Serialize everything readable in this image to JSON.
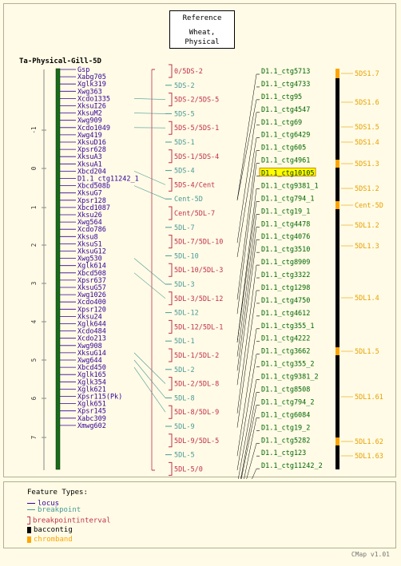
{
  "reference": {
    "line1": "Reference",
    "line2": "Wheat, Physical"
  },
  "map_title": "Ta-Physical-Gill-5D",
  "axis_ticks": [
    "-1",
    "0",
    "1",
    "2",
    "3",
    "4",
    "5",
    "6",
    "7"
  ],
  "loci": [
    "Gsp",
    "Xabg705",
    "Xglk319",
    "Xwg363",
    "Xcdo1335",
    "XksuI26",
    "XksuM2",
    "Xwg909",
    "Xcdo1049",
    "Xwg419",
    "XksuD16",
    "Xpsr628",
    "XksuA3",
    "XksuA1",
    "Xbcd204",
    "D1.1_ctg11242_1",
    "Xbcd508b",
    "XksuG7",
    "Xpsr128",
    "Xbcd1087",
    "Xksu26",
    "Xwg564",
    "Xcdo786",
    "Xksu8",
    "XksuS1",
    "XksuG12",
    "Xwg530",
    "Xglk614",
    "Xbcd508",
    "Xpsr637",
    "XksuG57",
    "Xwg1026",
    "Xcdo400",
    "Xpsr120",
    "Xksu24",
    "Xglk644",
    "Xcdo484",
    "Xcdo213",
    "Xwg908",
    "XksuG14",
    "Xwg644",
    "Xbcd450",
    "Xglk165",
    "Xglk354",
    "Xglk621",
    "Xpsr115(Pk)",
    "Xglk651",
    "Xpsr145",
    "Xabc309",
    "Xmwg602"
  ],
  "intervals": [
    {
      "label": "0/5DS-2",
      "color": "#c0304a"
    },
    {
      "label": "5DS-2",
      "color": "#4a9a9a"
    },
    {
      "label": "5DS-2/5DS-5",
      "color": "#c0304a"
    },
    {
      "label": "5DS-5",
      "color": "#4a9a9a"
    },
    {
      "label": "5DS-5/5DS-1",
      "color": "#c0304a"
    },
    {
      "label": "5DS-1",
      "color": "#4a9a9a"
    },
    {
      "label": "5DS-1/5DS-4",
      "color": "#c0304a"
    },
    {
      "label": "5DS-4",
      "color": "#4a9a9a"
    },
    {
      "label": "5DS-4/Cent",
      "color": "#c0304a"
    },
    {
      "label": "Cent-5D",
      "color": "#4a9a9a"
    },
    {
      "label": "Cent/5DL-7",
      "color": "#c0304a"
    },
    {
      "label": "5DL-7",
      "color": "#4a9a9a"
    },
    {
      "label": "5DL-7/5DL-10",
      "color": "#c0304a"
    },
    {
      "label": "5DL-10",
      "color": "#4a9a9a"
    },
    {
      "label": "5DL-10/5DL-3",
      "color": "#c0304a"
    },
    {
      "label": "5DL-3",
      "color": "#4a9a9a"
    },
    {
      "label": "5DL-3/5DL-12",
      "color": "#c0304a"
    },
    {
      "label": "5DL-12",
      "color": "#4a9a9a"
    },
    {
      "label": "5DL-12/5DL-1",
      "color": "#c0304a"
    },
    {
      "label": "5DL-1",
      "color": "#4a9a9a"
    },
    {
      "label": "5DL-1/5DL-2",
      "color": "#c0304a"
    },
    {
      "label": "5DL-2",
      "color": "#4a9a9a"
    },
    {
      "label": "5DL-2/5DL-8",
      "color": "#c0304a"
    },
    {
      "label": "5DL-8",
      "color": "#4a9a9a"
    },
    {
      "label": "5DL-8/5DL-9",
      "color": "#c0304a"
    },
    {
      "label": "5DL-9",
      "color": "#4a9a9a"
    },
    {
      "label": "5DL-9/5DL-5",
      "color": "#c0304a"
    },
    {
      "label": "5DL-5",
      "color": "#4a9a9a"
    },
    {
      "label": "5DL-5/0",
      "color": "#c0304a"
    }
  ],
  "contigs": [
    "D1.1_ctg5713",
    "D1.1_ctg4733",
    "D1.1_ctg95",
    "D1.1_ctg4547",
    "D1.1_ctg69",
    "D1.1_ctg6429",
    "D1.1_ctg605",
    "D1.1_ctg4961",
    "D1.1_ctg10105",
    "D1.1_ctg9381_1",
    "D1.1_ctg794_1",
    "D1.1_ctg19_1",
    "D1.1_ctg4478",
    "D1.1_ctg4076",
    "D1.1_ctg3510",
    "D1.1_ctg8909",
    "D1.1_ctg3322",
    "D1.1_ctg1298",
    "D1.1_ctg4750",
    "D1.1_ctg4612",
    "D1.1_ctg355_1",
    "D1.1_ctg4222",
    "D1.1_ctg3662",
    "D1.1_ctg355_2",
    "D1.1_ctg9381_2",
    "D1.1_ctg8508",
    "D1.1_ctg794_2",
    "D1.1_ctg6084",
    "D1.1_ctg19_2",
    "D1.1_ctg5282",
    "D1.1_ctg123",
    "D1.1_ctg11242_2"
  ],
  "highlighted_contig": "D1.1_ctg10105",
  "chrombands": [
    "5DS1.7",
    "5DS1.6",
    "5DS1.5",
    "5DS1.4",
    "5DS1.3",
    "5DS1.2",
    "Cent-5D",
    "5DL1.2",
    "5DL1.3",
    "5DL1.4",
    "5DL1.5",
    "5DL1.61",
    "5DL1.62",
    "5DL1.63"
  ],
  "legend": {
    "title": "Feature Types:",
    "items": [
      {
        "label": "locus",
        "color": "#330099"
      },
      {
        "label": "breakpoint",
        "color": "#4a9a9a"
      },
      {
        "label": "breakpointinterval",
        "color": "#c0304a"
      },
      {
        "label": "baccontig",
        "color": "#000000"
      },
      {
        "label": "chromband",
        "color": "#ffa500"
      }
    ]
  },
  "version": "CMap v1.01",
  "colors": {
    "locus": "#330099",
    "contig_text": "#006600",
    "chromband": "#e8a000",
    "backbone": "#1a6b1a"
  }
}
